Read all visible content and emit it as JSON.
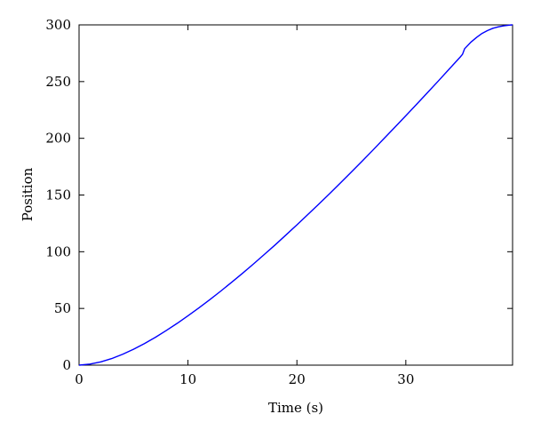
{
  "chart_data": {
    "type": "line",
    "title": "",
    "xlabel": "Time (s)",
    "ylabel": "Position",
    "xlim": [
      0,
      39.8
    ],
    "ylim": [
      0,
      300
    ],
    "xticks": [
      0,
      10,
      20,
      30
    ],
    "yticks": [
      0,
      50,
      100,
      150,
      200,
      250,
      300
    ],
    "grid": false,
    "legend": "none",
    "series": [
      {
        "color": "#0000ff",
        "x": [
          0,
          1,
          2,
          3,
          4,
          5,
          6,
          7,
          8,
          9,
          10,
          11,
          12,
          13,
          14,
          15,
          16,
          17,
          18,
          19,
          20,
          21,
          22,
          23,
          24,
          25,
          26,
          27,
          28,
          29,
          30,
          31,
          32,
          33,
          34,
          35,
          35.2,
          35.4,
          36,
          36.5,
          37,
          37.5,
          38,
          38.5,
          39,
          39.5,
          39.8
        ],
        "y": [
          0,
          0.9,
          2.9,
          5.8,
          9.6,
          14,
          19,
          24.5,
          30.5,
          36.8,
          43.5,
          50.5,
          57.7,
          65.2,
          73,
          80.9,
          89.1,
          97.5,
          106,
          114.8,
          123.7,
          132.8,
          141.9,
          151.2,
          160.7,
          170.3,
          180,
          189.8,
          199.8,
          209.8,
          219.9,
          230.1,
          240.4,
          250.7,
          261.2,
          271.7,
          274,
          279,
          285,
          289,
          292.5,
          295,
          297,
          298.3,
          299.2,
          299.8,
          300
        ]
      }
    ]
  }
}
